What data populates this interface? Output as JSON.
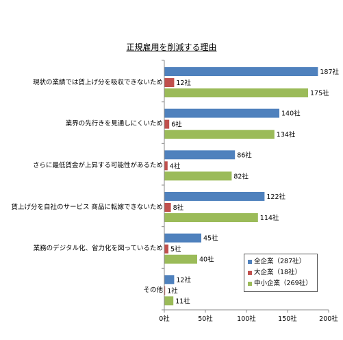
{
  "chart_data": {
    "type": "bar",
    "orientation": "horizontal",
    "title": "正規雇用を削減する理由",
    "categories": [
      "現状の業績では賃上げ分を吸収できないため",
      "業界の先行きを見通しにくいため",
      "さらに最低賃金が上昇する可能性があるため",
      "賃上げ分を自社のサービス 商品に転嫁できないため",
      "業務のデジタル化、省力化を図っているため",
      "その他"
    ],
    "series": [
      {
        "name": "全企業（287社）",
        "color": "#4f81bd",
        "values": [
          187,
          140,
          86,
          122,
          45,
          12
        ],
        "labels": [
          "187社",
          "140社",
          "86社",
          "122社",
          "45社",
          "12社"
        ]
      },
      {
        "name": "大企業（18社）",
        "color": "#c0504d",
        "values": [
          12,
          6,
          4,
          8,
          5,
          1
        ],
        "labels": [
          "12社",
          "6社",
          "4社",
          "8社",
          "5社",
          "1社"
        ]
      },
      {
        "name": "中小企業（269社）",
        "color": "#9bbb59",
        "values": [
          175,
          134,
          82,
          114,
          40,
          11
        ],
        "labels": [
          "175社",
          "134社",
          "82社",
          "114社",
          "40社",
          "11社"
        ]
      }
    ],
    "xlim": [
      0,
      200
    ],
    "xticks": [
      {
        "value": 0,
        "label": "0社"
      },
      {
        "value": 50,
        "label": "50社"
      },
      {
        "value": 100,
        "label": "100社"
      },
      {
        "value": 150,
        "label": "150社"
      },
      {
        "value": 200,
        "label": "200社"
      }
    ],
    "grid": false,
    "legend_position": "bottom-right"
  }
}
